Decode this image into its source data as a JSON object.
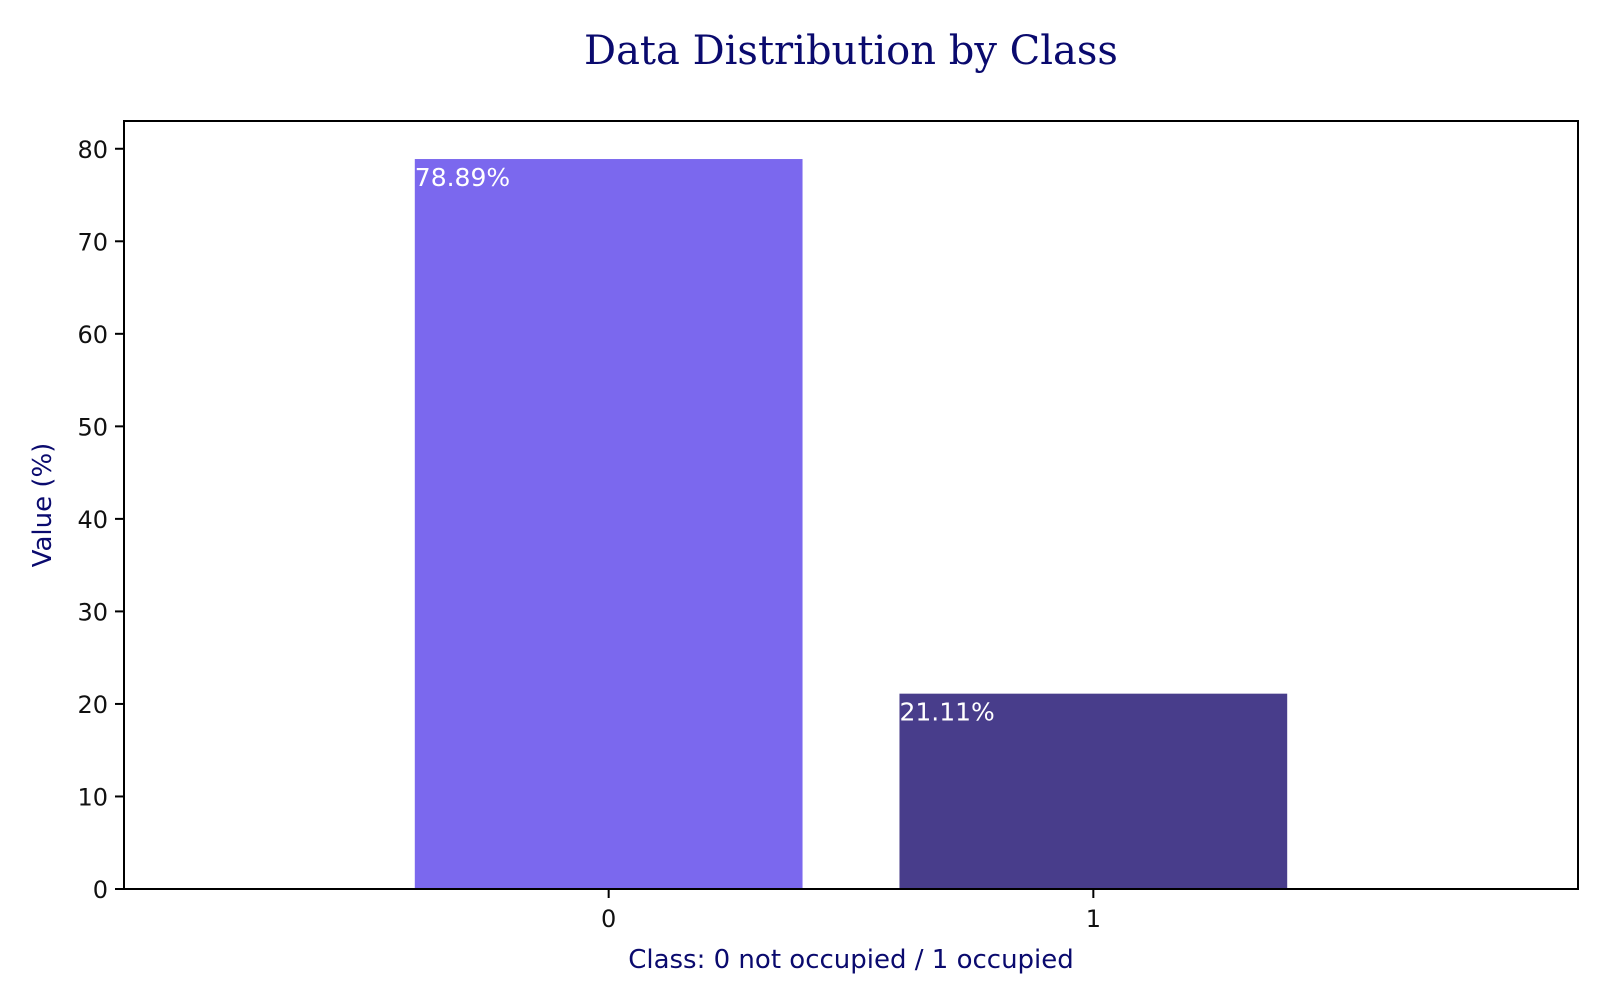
{
  "chart_data": {
    "type": "bar",
    "title": "Data Distribution by Class",
    "xlabel": "Class: 0 not occupied / 1 occupied",
    "ylabel": "Value (%)",
    "categories": [
      "0",
      "1"
    ],
    "values": [
      78.89,
      21.11
    ],
    "data_labels": [
      "78.89%",
      "21.11%"
    ],
    "colors": [
      "#7b68ee",
      "#483d8b"
    ],
    "ylim": [
      0,
      83
    ],
    "yticks": [
      0,
      10,
      20,
      30,
      40,
      50,
      60,
      70,
      80
    ],
    "grid": false,
    "legend": "none"
  }
}
